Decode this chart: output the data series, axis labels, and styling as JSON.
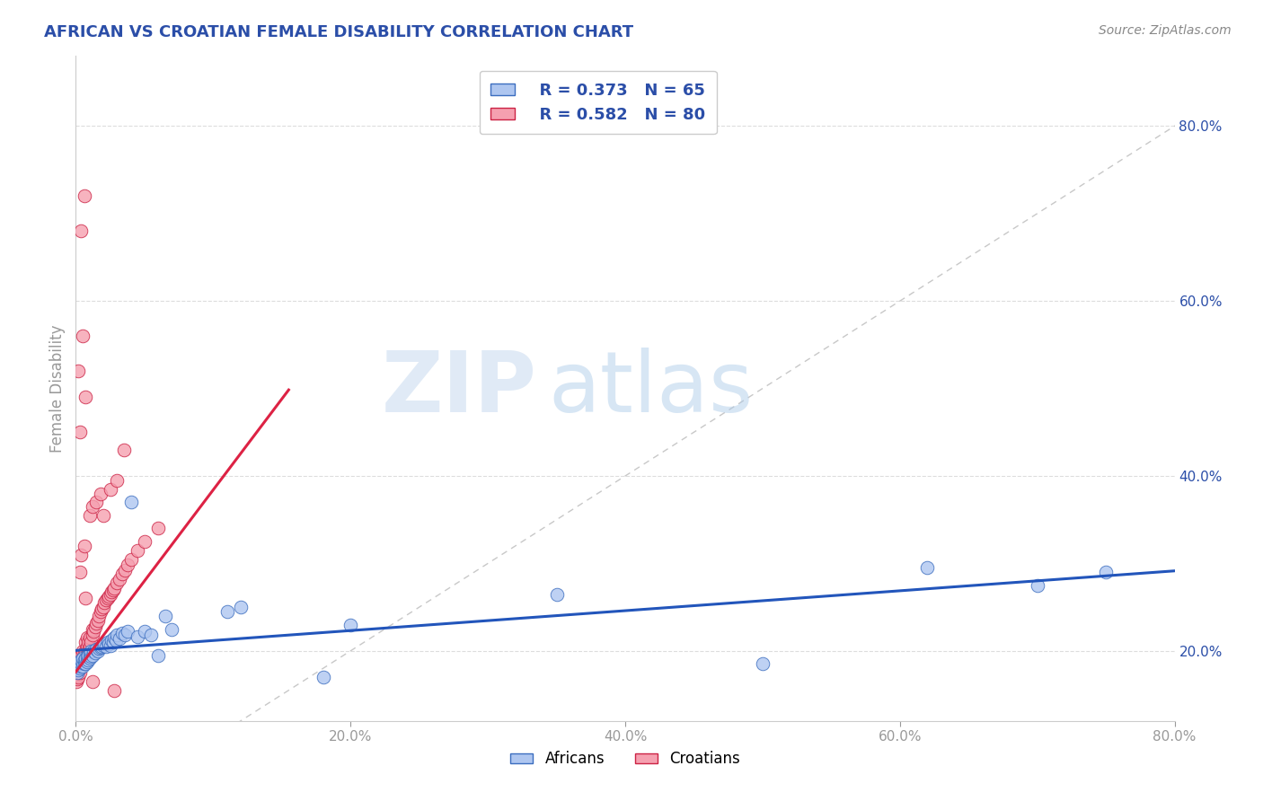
{
  "title": "AFRICAN VS CROATIAN FEMALE DISABILITY CORRELATION CHART",
  "source": "Source: ZipAtlas.com",
  "ylabel": "Female Disability",
  "xlim": [
    0.0,
    0.8
  ],
  "ylim": [
    0.12,
    0.88
  ],
  "african_color": "#aec6f0",
  "croatian_color": "#f5a0b0",
  "african_edge_color": "#3b6dbf",
  "croatian_edge_color": "#cc2244",
  "african_line_color": "#2255bb",
  "croatian_line_color": "#dd2244",
  "diagonal_color": "#c8c8c8",
  "title_color": "#2b4ea8",
  "axis_label_color": "#2b4ea8",
  "source_color": "#888888",
  "tick_color": "#999999",
  "legend_r1": "R = 0.373",
  "legend_n1": "N = 65",
  "legend_r2": "R = 0.582",
  "legend_n2": "N = 80",
  "watermark_zip": "ZIP",
  "watermark_atlas": "atlas",
  "background_color": "#ffffff",
  "grid_color": "#dddddd",
  "africans_x": [
    0.001,
    0.001,
    0.002,
    0.002,
    0.002,
    0.003,
    0.003,
    0.003,
    0.004,
    0.004,
    0.004,
    0.005,
    0.005,
    0.005,
    0.006,
    0.006,
    0.007,
    0.007,
    0.008,
    0.008,
    0.009,
    0.009,
    0.01,
    0.01,
    0.011,
    0.011,
    0.012,
    0.013,
    0.014,
    0.015,
    0.016,
    0.017,
    0.018,
    0.019,
    0.02,
    0.021,
    0.022,
    0.023,
    0.024,
    0.025,
    0.026,
    0.027,
    0.028,
    0.029,
    0.03,
    0.032,
    0.034,
    0.036,
    0.038,
    0.04,
    0.045,
    0.05,
    0.055,
    0.06,
    0.065,
    0.07,
    0.11,
    0.12,
    0.18,
    0.2,
    0.35,
    0.5,
    0.62,
    0.7,
    0.75
  ],
  "africans_y": [
    0.175,
    0.18,
    0.178,
    0.182,
    0.186,
    0.18,
    0.184,
    0.188,
    0.182,
    0.185,
    0.19,
    0.182,
    0.187,
    0.192,
    0.185,
    0.19,
    0.185,
    0.192,
    0.188,
    0.194,
    0.19,
    0.195,
    0.192,
    0.198,
    0.194,
    0.2,
    0.195,
    0.2,
    0.198,
    0.202,
    0.2,
    0.203,
    0.204,
    0.205,
    0.206,
    0.208,
    0.205,
    0.21,
    0.208,
    0.206,
    0.212,
    0.21,
    0.215,
    0.212,
    0.218,
    0.214,
    0.22,
    0.218,
    0.222,
    0.37,
    0.216,
    0.222,
    0.218,
    0.195,
    0.24,
    0.225,
    0.245,
    0.25,
    0.17,
    0.23,
    0.265,
    0.185,
    0.295,
    0.275,
    0.29
  ],
  "croatians_x": [
    0.0005,
    0.001,
    0.001,
    0.001,
    0.001,
    0.002,
    0.002,
    0.002,
    0.002,
    0.002,
    0.003,
    0.003,
    0.003,
    0.003,
    0.004,
    0.004,
    0.004,
    0.005,
    0.005,
    0.005,
    0.006,
    0.006,
    0.007,
    0.007,
    0.007,
    0.008,
    0.008,
    0.008,
    0.009,
    0.009,
    0.01,
    0.01,
    0.011,
    0.012,
    0.012,
    0.013,
    0.014,
    0.015,
    0.016,
    0.017,
    0.018,
    0.019,
    0.02,
    0.021,
    0.022,
    0.023,
    0.024,
    0.025,
    0.026,
    0.027,
    0.028,
    0.03,
    0.032,
    0.034,
    0.036,
    0.038,
    0.04,
    0.045,
    0.05,
    0.06,
    0.002,
    0.003,
    0.004,
    0.005,
    0.006,
    0.007,
    0.003,
    0.004,
    0.006,
    0.007,
    0.01,
    0.012,
    0.015,
    0.018,
    0.02,
    0.025,
    0.03,
    0.035,
    0.012,
    0.028
  ],
  "croatians_y": [
    0.165,
    0.168,
    0.172,
    0.175,
    0.18,
    0.17,
    0.175,
    0.18,
    0.185,
    0.19,
    0.175,
    0.18,
    0.185,
    0.19,
    0.182,
    0.188,
    0.195,
    0.185,
    0.192,
    0.2,
    0.19,
    0.198,
    0.192,
    0.2,
    0.21,
    0.195,
    0.205,
    0.215,
    0.2,
    0.21,
    0.205,
    0.215,
    0.21,
    0.218,
    0.225,
    0.222,
    0.228,
    0.232,
    0.235,
    0.24,
    0.245,
    0.248,
    0.25,
    0.255,
    0.258,
    0.26,
    0.262,
    0.265,
    0.268,
    0.27,
    0.272,
    0.278,
    0.282,
    0.288,
    0.292,
    0.298,
    0.305,
    0.315,
    0.325,
    0.34,
    0.52,
    0.45,
    0.68,
    0.56,
    0.72,
    0.49,
    0.29,
    0.31,
    0.32,
    0.26,
    0.355,
    0.365,
    0.37,
    0.38,
    0.355,
    0.385,
    0.395,
    0.43,
    0.165,
    0.155
  ]
}
